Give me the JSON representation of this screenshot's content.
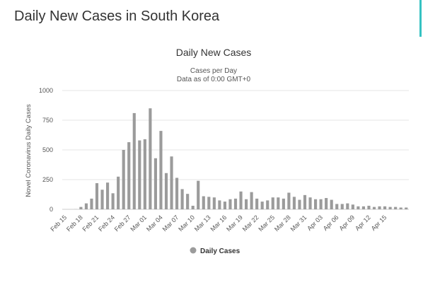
{
  "page": {
    "title": "Daily New Cases in South Korea"
  },
  "colors": {
    "bar": "#9b9b9b",
    "accent": "#35c2c2",
    "grid": "#e6e6e6"
  },
  "chart_data": {
    "type": "bar",
    "title": "Daily New Cases",
    "subtitle": "Cases per Day",
    "subtitle2": "Data as of 0:00 GMT+0",
    "ylabel": "Novel Coronavirus Daily Cases",
    "xlabel": "",
    "ylim": [
      0,
      1000
    ],
    "yticks": [
      0,
      250,
      500,
      750,
      1000
    ],
    "categories": [
      "Feb 15",
      "Feb 16",
      "Feb 17",
      "Feb 18",
      "Feb 19",
      "Feb 20",
      "Feb 21",
      "Feb 22",
      "Feb 23",
      "Feb 24",
      "Feb 25",
      "Feb 26",
      "Feb 27",
      "Feb 28",
      "Feb 29",
      "Mar 01",
      "Mar 02",
      "Mar 03",
      "Mar 04",
      "Mar 05",
      "Mar 06",
      "Mar 07",
      "Mar 08",
      "Mar 09",
      "Mar 10",
      "Mar 11",
      "Mar 12",
      "Mar 13",
      "Mar 14",
      "Mar 15",
      "Mar 16",
      "Mar 17",
      "Mar 18",
      "Mar 19",
      "Mar 20",
      "Mar 21",
      "Mar 22",
      "Mar 23",
      "Mar 24",
      "Mar 25",
      "Mar 26",
      "Mar 27",
      "Mar 28",
      "Mar 29",
      "Mar 30",
      "Mar 31",
      "Apr 01",
      "Apr 02",
      "Apr 03",
      "Apr 04",
      "Apr 05",
      "Apr 06",
      "Apr 07",
      "Apr 08",
      "Apr 09",
      "Apr 10",
      "Apr 11",
      "Apr 12",
      "Apr 13",
      "Apr 14",
      "Apr 15",
      "Apr 16",
      "Apr 17",
      "Apr 18",
      "Apr 19"
    ],
    "tick_labels": [
      "Feb 15",
      "Feb 18",
      "Feb 21",
      "Feb 24",
      "Feb 27",
      "Mar 01",
      "Mar 04",
      "Mar 07",
      "Mar 10",
      "Mar 13",
      "Mar 16",
      "Mar 19",
      "Mar 22",
      "Mar 25",
      "Mar 28",
      "Mar 31",
      "Apr 03",
      "Apr 06",
      "Apr 09",
      "Apr 12",
      "Apr 15"
    ],
    "series": [
      {
        "name": "Daily Cases",
        "values": [
          0,
          0,
          1,
          20,
          50,
          90,
          220,
          165,
          225,
          135,
          275,
          500,
          565,
          810,
          580,
          590,
          850,
          430,
          660,
          305,
          445,
          265,
          170,
          130,
          30,
          240,
          110,
          105,
          100,
          75,
          65,
          85,
          90,
          150,
          85,
          145,
          90,
          65,
          75,
          100,
          100,
          90,
          140,
          105,
          80,
          120,
          100,
          85,
          85,
          95,
          80,
          45,
          45,
          50,
          40,
          25,
          25,
          30,
          20,
          25,
          25,
          20,
          20,
          15,
          15
        ]
      }
    ],
    "legend": "bottom-center",
    "grid": true
  }
}
